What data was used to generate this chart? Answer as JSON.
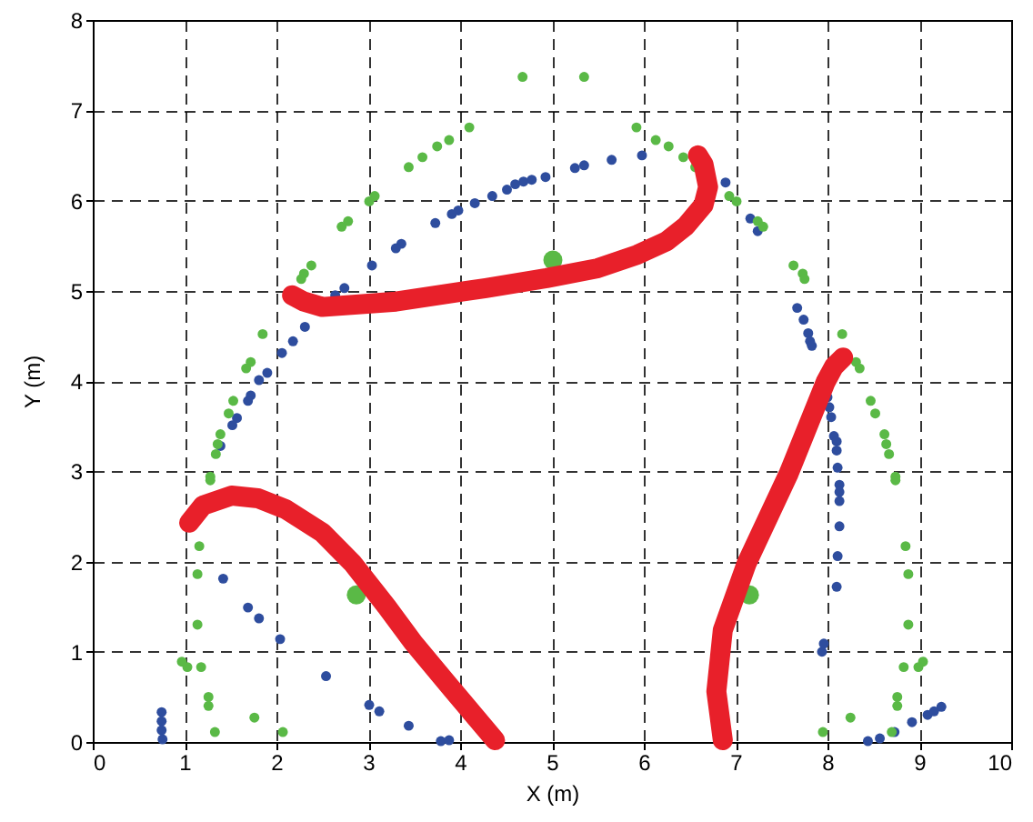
{
  "chart_data": {
    "type": "scatter",
    "xlabel": "X (m)",
    "ylabel": "Y (m)",
    "xlim": [
      0,
      10
    ],
    "ylim": [
      0,
      8
    ],
    "xticks": [
      0,
      1,
      2,
      3,
      4,
      5,
      6,
      7,
      8,
      9,
      10
    ],
    "yticks": [
      0,
      1,
      2,
      3,
      4,
      5,
      6,
      7,
      8
    ],
    "grid": true,
    "series": [
      {
        "color": "#2e4d9e",
        "marker": "circle",
        "x": [
          4.93,
          4.78,
          4.69,
          4.6,
          4.51,
          4.35,
          4.16,
          3.98,
          3.91,
          3.73,
          3.36,
          3.3,
          3.04,
          2.74,
          2.64,
          2.31,
          2.18,
          2.06,
          1.9,
          1.81,
          5.25,
          5.35,
          5.65,
          5.98,
          6.89,
          7.16,
          7.24,
          7.67,
          7.74,
          7.79,
          7.81,
          7.83,
          1.72,
          1.69,
          1.57,
          1.52,
          1.39,
          1.42,
          1.69,
          1.81,
          2.04,
          2.54,
          3.01,
          3.12,
          3.44,
          3.79,
          3.88,
          0.75,
          0.75,
          0.75,
          0.76,
          8.0,
          8.02,
          8.04,
          8.07,
          8.1,
          8.1,
          8.11,
          8.13,
          8.13,
          8.13,
          8.13,
          8.11,
          8.1,
          7.96,
          7.94,
          8.44,
          8.57,
          8.73,
          8.92,
          9.09,
          9.16,
          9.24
        ],
        "values": [
          6.26,
          6.23,
          6.21,
          6.18,
          6.12,
          6.05,
          5.97,
          5.89,
          5.85,
          5.75,
          5.52,
          5.47,
          5.28,
          5.03,
          4.95,
          4.6,
          4.44,
          4.31,
          4.09,
          4.01,
          6.36,
          6.39,
          6.45,
          6.5,
          6.2,
          5.8,
          5.66,
          4.81,
          4.68,
          4.53,
          4.44,
          4.39,
          3.84,
          3.78,
          3.59,
          3.51,
          3.28,
          1.81,
          1.49,
          1.37,
          1.14,
          0.73,
          0.41,
          0.34,
          0.18,
          0.01,
          0.02,
          0.33,
          0.23,
          0.13,
          0.03,
          3.82,
          3.71,
          3.6,
          3.39,
          3.33,
          3.23,
          3.04,
          2.85,
          2.77,
          2.67,
          2.39,
          2.06,
          1.72,
          1.09,
          1.0,
          0.01,
          0.04,
          0.11,
          0.22,
          0.3,
          0.34,
          0.39
        ]
      },
      {
        "color": "#5ab946",
        "marker": "circle",
        "x": [
          4.68,
          4.1,
          3.88,
          3.75,
          3.59,
          3.44,
          3.07,
          3.01,
          2.78,
          2.71,
          2.38,
          2.3,
          2.27,
          1.85,
          1.72,
          1.67,
          5.35,
          5.92,
          6.13,
          6.27,
          6.43,
          6.56,
          6.93,
          7.01,
          7.24,
          7.3,
          7.63,
          7.73,
          7.75,
          8.16,
          8.31,
          8.35,
          1.53,
          1.48,
          1.39,
          1.36,
          1.34,
          1.28,
          1.28,
          1.16,
          1.14,
          1.14,
          0.97,
          1.03,
          1.18,
          1.26,
          1.26,
          1.76,
          1.33,
          2.07,
          8.47,
          8.52,
          8.62,
          8.64,
          8.67,
          8.74,
          8.74,
          8.85,
          8.88,
          8.88,
          9.04,
          8.99,
          8.83,
          8.76,
          8.76,
          8.25,
          8.7,
          7.95
        ],
        "values": [
          7.37,
          6.81,
          6.67,
          6.6,
          6.48,
          6.37,
          6.05,
          5.99,
          5.77,
          5.71,
          5.28,
          5.19,
          5.13,
          4.52,
          4.21,
          4.14,
          7.37,
          6.81,
          6.67,
          6.6,
          6.48,
          6.37,
          6.05,
          5.99,
          5.77,
          5.71,
          5.28,
          5.19,
          5.13,
          4.52,
          4.21,
          4.14,
          3.78,
          3.64,
          3.41,
          3.3,
          3.19,
          2.94,
          2.9,
          2.17,
          1.86,
          1.3,
          0.89,
          0.83,
          0.83,
          0.5,
          0.4,
          0.27,
          0.11,
          0.11,
          3.78,
          3.64,
          3.41,
          3.3,
          3.19,
          2.94,
          2.9,
          2.17,
          1.86,
          1.3,
          0.89,
          0.83,
          0.83,
          0.5,
          0.4,
          0.27,
          0.11,
          0.11
        ]
      },
      {
        "type": "bubble",
        "color": "#5ab946",
        "marker": "circle",
        "x": [
          5.01,
          2.87,
          7.15
        ],
        "values": [
          5.34,
          1.63,
          1.63
        ],
        "sizes": [
          1,
          1,
          1
        ]
      },
      {
        "type": "line",
        "color": "#e8202a",
        "marker": "none",
        "x": [
          2.17,
          2.3,
          2.5,
          3.3,
          4.28,
          4.94,
          5.5,
          5.93,
          6.25,
          6.46,
          6.65,
          6.7,
          6.65,
          6.59
        ],
        "values": [
          4.95,
          4.88,
          4.82,
          4.88,
          5.03,
          5.14,
          5.25,
          5.4,
          5.55,
          5.72,
          5.95,
          6.15,
          6.4,
          6.5
        ]
      },
      {
        "type": "line",
        "color": "#e8202a",
        "marker": "none",
        "x": [
          1.05,
          1.2,
          1.51,
          1.8,
          2.1,
          2.5,
          2.83,
          3.2,
          3.49,
          3.9,
          4.38
        ],
        "values": [
          2.43,
          2.62,
          2.73,
          2.7,
          2.58,
          2.32,
          1.98,
          1.5,
          1.1,
          0.6,
          0.02
        ]
      },
      {
        "type": "line",
        "color": "#e8202a",
        "marker": "none",
        "x": [
          6.86,
          6.79,
          6.86,
          7.12,
          7.58,
          7.98,
          8.07,
          8.17
        ],
        "values": [
          0.02,
          0.56,
          1.24,
          1.98,
          2.98,
          3.99,
          4.16,
          4.26
        ]
      }
    ]
  }
}
